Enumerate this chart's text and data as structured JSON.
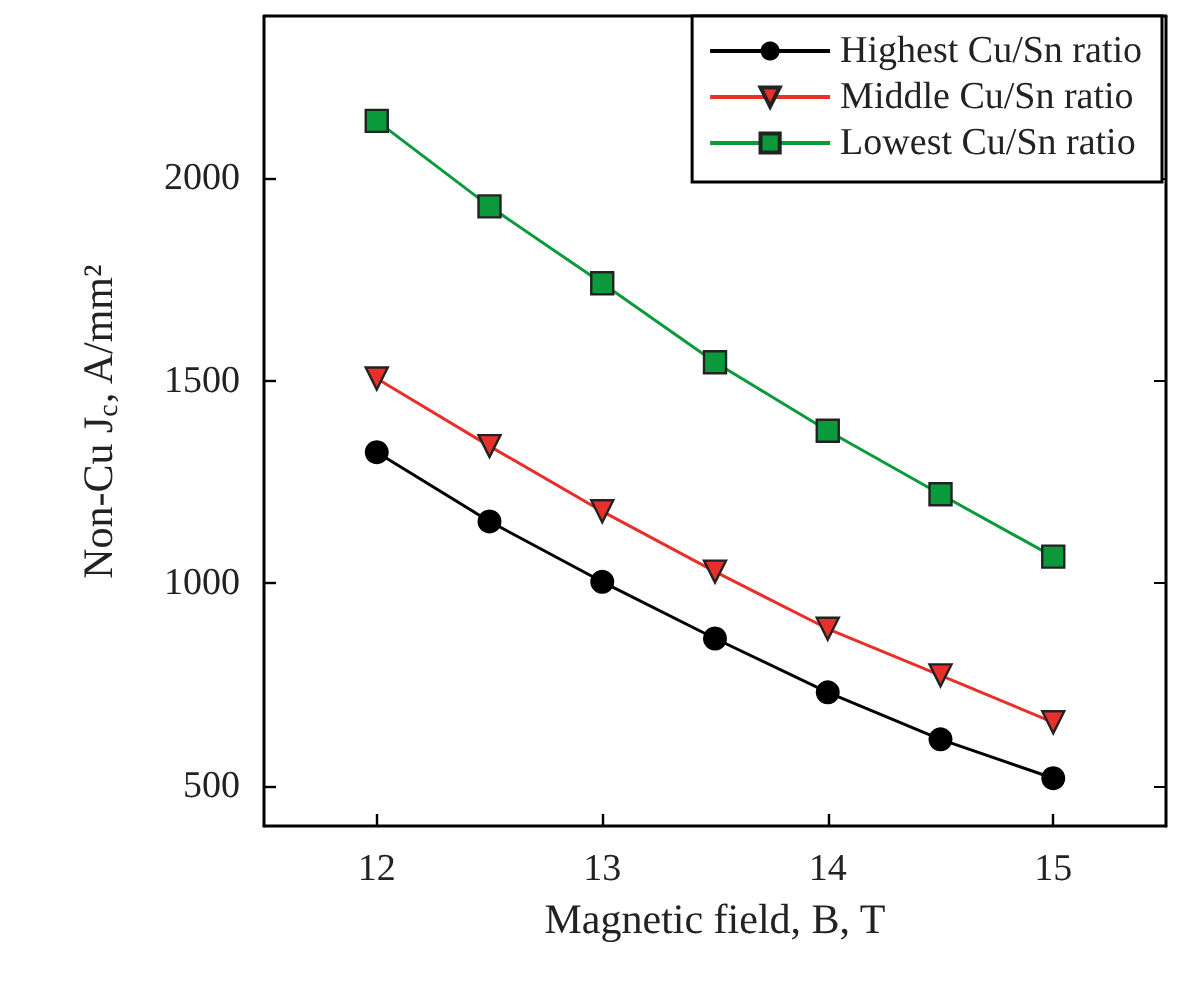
{
  "chart_data": {
    "type": "line",
    "xlabel": "Magnetic field, B, T",
    "ylabel": "Non-Cu J$_{c}$, A/mm²",
    "x": [
      12,
      12.5,
      13,
      13.5,
      14,
      14.5,
      15
    ],
    "series": [
      {
        "name": "Highest Cu/Sn ratio",
        "color": "#000000",
        "marker": "circle",
        "values": [
          1323,
          1152,
          1003,
          863,
          730,
          614,
          518
        ]
      },
      {
        "name": "Middle Cu/Sn ratio",
        "color": "#e8302a",
        "marker": "triangle",
        "values": [
          1505,
          1338,
          1177,
          1028,
          887,
          772,
          656
        ]
      },
      {
        "name": "Lowest Cu/Sn ratio",
        "color": "#0a9a3c",
        "marker": "square",
        "values": [
          2141,
          1930,
          1740,
          1545,
          1376,
          1219,
          1065
        ]
      }
    ],
    "xlim": [
      11.5,
      15.5
    ],
    "xticks": [
      12,
      13,
      14,
      15
    ],
    "ylim": [
      400,
      2400
    ],
    "yticks": [
      500,
      1000,
      1500,
      2000
    ],
    "legend": "top right",
    "grid": false
  }
}
